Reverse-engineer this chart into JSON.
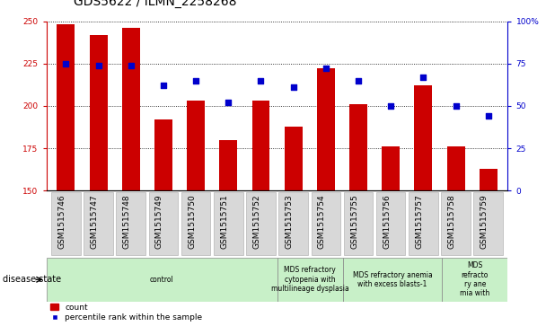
{
  "title": "GDS5622 / ILMN_2258268",
  "samples": [
    "GSM1515746",
    "GSM1515747",
    "GSM1515748",
    "GSM1515749",
    "GSM1515750",
    "GSM1515751",
    "GSM1515752",
    "GSM1515753",
    "GSM1515754",
    "GSM1515755",
    "GSM1515756",
    "GSM1515757",
    "GSM1515758",
    "GSM1515759"
  ],
  "counts": [
    248,
    242,
    246,
    192,
    203,
    180,
    203,
    188,
    222,
    201,
    176,
    212,
    176,
    163
  ],
  "percentiles": [
    75,
    74,
    74,
    62,
    65,
    52,
    65,
    61,
    72,
    65,
    50,
    67,
    50,
    44
  ],
  "bar_color": "#cc0000",
  "dot_color": "#0000cc",
  "ylim_left": [
    150,
    250
  ],
  "ylim_right": [
    0,
    100
  ],
  "yticks_left": [
    150,
    175,
    200,
    225,
    250
  ],
  "yticks_right": [
    0,
    25,
    50,
    75,
    100
  ],
  "disease_groups": [
    {
      "label": "control",
      "start": 0,
      "end": 7,
      "color": "#c8f0c8"
    },
    {
      "label": "MDS refractory\ncytopenia with\nmultilineage dysplasia",
      "start": 7,
      "end": 9,
      "color": "#c8f0c8"
    },
    {
      "label": "MDS refractory anemia\nwith excess blasts-1",
      "start": 9,
      "end": 12,
      "color": "#c8f0c8"
    },
    {
      "label": "MDS\nrefracto\nry ane\nmia with",
      "start": 12,
      "end": 14,
      "color": "#c8f0c8"
    }
  ],
  "legend_count_label": "count",
  "legend_percentile_label": "percentile rank within the sample",
  "disease_state_label": "disease state",
  "title_fontsize": 10,
  "tick_fontsize": 6.5,
  "label_fontsize": 7
}
